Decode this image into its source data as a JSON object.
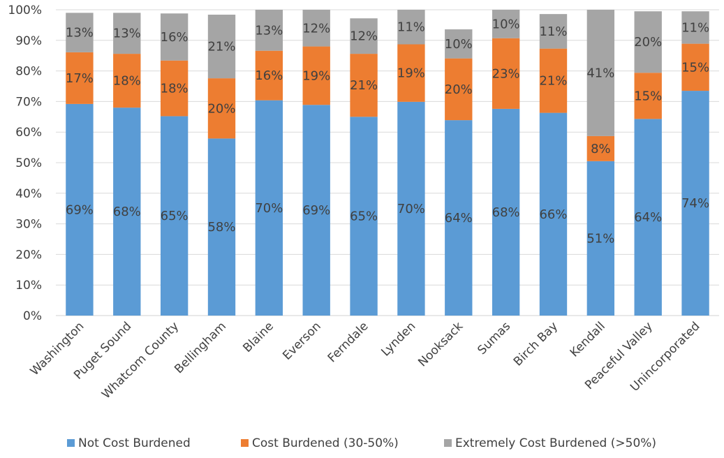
{
  "chart_data": {
    "type": "bar",
    "stacked": true,
    "title": "",
    "xlabel": "",
    "ylabel": "",
    "ylim": [
      0,
      100
    ],
    "y_ticks": [
      "0%",
      "10%",
      "20%",
      "30%",
      "40%",
      "50%",
      "60%",
      "70%",
      "80%",
      "90%",
      "100%"
    ],
    "grid": true,
    "legend_position": "bottom",
    "categories": [
      "Washington",
      "Puget Sound",
      "Whatcom County",
      "Bellingham",
      "Blaine",
      "Everson",
      "Ferndale",
      "Lynden",
      "Nooksack",
      "Sumas",
      "Birch Bay",
      "Kendall",
      "Peaceful Valley",
      "Unincorporated"
    ],
    "series": [
      {
        "name": "Not Cost Burdened",
        "color": "#5B9BD5",
        "values": [
          69,
          68,
          65,
          58,
          70,
          69,
          65,
          70,
          64,
          68,
          66,
          51,
          64,
          74
        ],
        "exact": [
          69.2,
          68.0,
          65.2,
          57.9,
          70.4,
          68.9,
          65.0,
          69.9,
          63.9,
          67.6,
          66.3,
          50.5,
          64.3,
          73.5
        ],
        "labels": [
          "69%",
          "68%",
          "65%",
          "58%",
          "70%",
          "69%",
          "65%",
          "70%",
          "64%",
          "68%",
          "66%",
          "51%",
          "64%",
          "74%"
        ]
      },
      {
        "name": "Cost Burdened (30-50%)",
        "color": "#ED7D31",
        "values": [
          17,
          18,
          18,
          20,
          16,
          19,
          21,
          19,
          20,
          23,
          21,
          8,
          15,
          15
        ],
        "exact": [
          16.9,
          17.6,
          18.2,
          19.7,
          16.2,
          19.1,
          20.6,
          18.8,
          20.2,
          23.1,
          21.0,
          8.2,
          15.1,
          15.4
        ],
        "labels": [
          "17%",
          "18%",
          "18%",
          "20%",
          "16%",
          "19%",
          "21%",
          "19%",
          "20%",
          "23%",
          "21%",
          "8%",
          "15%",
          "15%"
        ]
      },
      {
        "name": "Extremely Cost Burdened (>50%)",
        "color": "#A5A5A5",
        "values": [
          13,
          13,
          16,
          21,
          13,
          12,
          12,
          11,
          10,
          10,
          11,
          41,
          20,
          11
        ],
        "exact": [
          12.9,
          13.4,
          15.4,
          20.8,
          13.4,
          12.1,
          11.6,
          11.3,
          9.5,
          9.6,
          11.3,
          41.3,
          20.1,
          10.6
        ],
        "labels": [
          "13%",
          "13%",
          "16%",
          "21%",
          "13%",
          "12%",
          "12%",
          "11%",
          "10%",
          "10%",
          "11%",
          "41%",
          "20%",
          "11%"
        ]
      }
    ]
  }
}
